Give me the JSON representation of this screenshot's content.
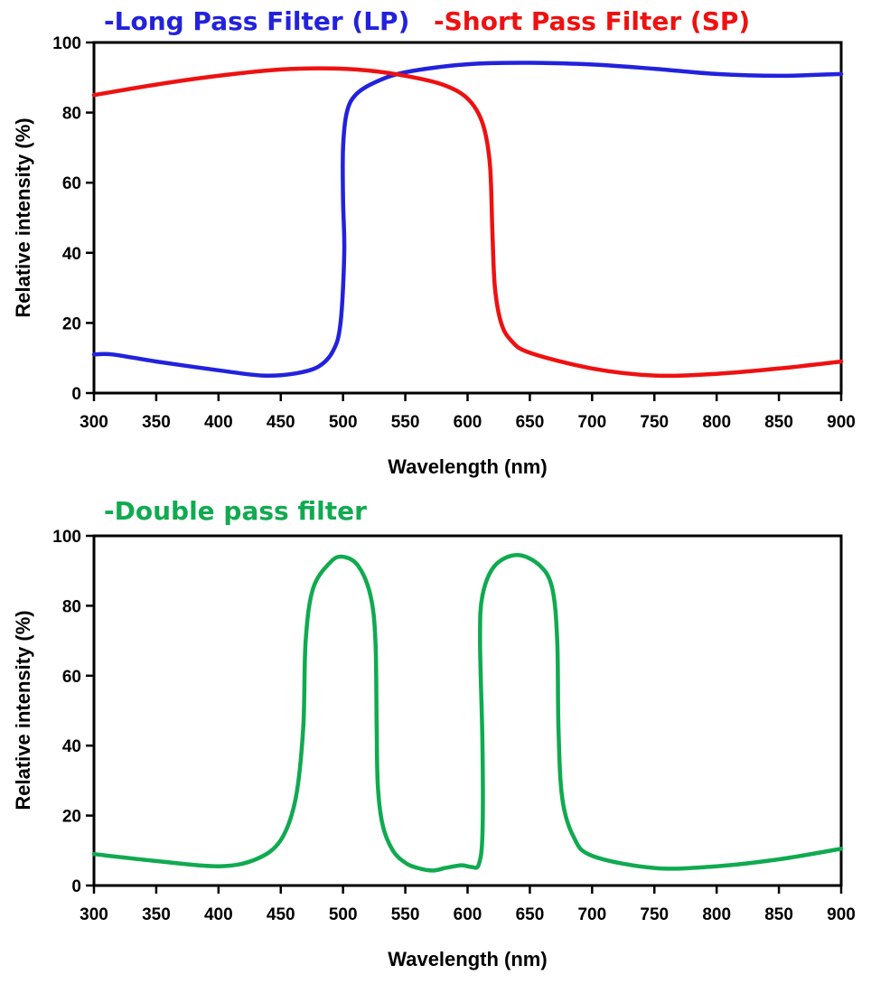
{
  "chart_data": [
    {
      "type": "line",
      "titles": [
        {
          "text": "-Long Pass Filter (LP)",
          "color": "#2222dd"
        },
        {
          "text": "-Short Pass Filter (SP)",
          "color": "#ee1111"
        }
      ],
      "xlabel": "Wavelength (nm)",
      "ylabel": "Relative intensity (%)",
      "xlim": [
        300,
        900
      ],
      "ylim": [
        0,
        100
      ],
      "xticks": [
        300,
        350,
        400,
        450,
        500,
        550,
        600,
        650,
        700,
        750,
        800,
        850,
        900
      ],
      "yticks": [
        0,
        20,
        40,
        60,
        80,
        100
      ],
      "grid": false,
      "series": [
        {
          "color": "#2222dd",
          "points": [
            [
              300,
              11
            ],
            [
              315,
              11
            ],
            [
              350,
              9
            ],
            [
              400,
              6.5
            ],
            [
              435,
              5
            ],
            [
              460,
              5.5
            ],
            [
              480,
              7.5
            ],
            [
              492,
              12
            ],
            [
              498,
              20
            ],
            [
              501,
              40
            ],
            [
              500,
              55
            ],
            [
              500,
              70
            ],
            [
              503,
              80
            ],
            [
              510,
              85
            ],
            [
              525,
              88.5
            ],
            [
              550,
              91.5
            ],
            [
              600,
              93.8
            ],
            [
              650,
              94.2
            ],
            [
              700,
              93.7
            ],
            [
              750,
              92.5
            ],
            [
              800,
              91
            ],
            [
              850,
              90.5
            ],
            [
              900,
              91
            ]
          ]
        },
        {
          "color": "#ee1111",
          "points": [
            [
              300,
              85
            ],
            [
              350,
              88
            ],
            [
              400,
              90.5
            ],
            [
              450,
              92.3
            ],
            [
              490,
              92.6
            ],
            [
              520,
              92
            ],
            [
              550,
              90.5
            ],
            [
              580,
              88
            ],
            [
              600,
              84
            ],
            [
              612,
              77
            ],
            [
              618,
              65
            ],
            [
              620,
              45
            ],
            [
              622,
              30
            ],
            [
              627,
              20
            ],
            [
              635,
              15
            ],
            [
              650,
              11.5
            ],
            [
              700,
              7
            ],
            [
              750,
              5
            ],
            [
              800,
              5.5
            ],
            [
              850,
              7
            ],
            [
              900,
              9
            ]
          ]
        }
      ]
    },
    {
      "type": "line",
      "titles": [
        {
          "text": "-Double pass filter",
          "color": "#10aa50"
        }
      ],
      "xlabel": "Wavelength (nm)",
      "ylabel": "Relative intensity (%)",
      "xlim": [
        300,
        900
      ],
      "ylim": [
        0,
        100
      ],
      "xticks": [
        300,
        350,
        400,
        450,
        500,
        550,
        600,
        650,
        700,
        750,
        800,
        850,
        900
      ],
      "yticks": [
        0,
        20,
        40,
        60,
        80,
        100
      ],
      "grid": false,
      "series": [
        {
          "color": "#10aa50",
          "points": [
            [
              300,
              9
            ],
            [
              350,
              7
            ],
            [
              400,
              5.5
            ],
            [
              430,
              7.5
            ],
            [
              450,
              13
            ],
            [
              462,
              25
            ],
            [
              468,
              45
            ],
            [
              470,
              70
            ],
            [
              476,
              85
            ],
            [
              490,
              92.5
            ],
            [
              500,
              94
            ],
            [
              512,
              91.5
            ],
            [
              522,
              83
            ],
            [
              526,
              70
            ],
            [
              527,
              45
            ],
            [
              528,
              28
            ],
            [
              532,
              17
            ],
            [
              540,
              10
            ],
            [
              550,
              6.5
            ],
            [
              560,
              5
            ],
            [
              572,
              4.3
            ],
            [
              582,
              5
            ],
            [
              595,
              5.8
            ],
            [
              603,
              5.3
            ],
            [
              609,
              6
            ],
            [
              612,
              15
            ],
            [
              612,
              40
            ],
            [
              610,
              70
            ],
            [
              612,
              83
            ],
            [
              622,
              91.5
            ],
            [
              640,
              94.5
            ],
            [
              658,
              91.5
            ],
            [
              668,
              85
            ],
            [
              672,
              70
            ],
            [
              673,
              45
            ],
            [
              676,
              25
            ],
            [
              685,
              14
            ],
            [
              700,
              8.5
            ],
            [
              750,
              5
            ],
            [
              800,
              5.5
            ],
            [
              850,
              7.5
            ],
            [
              900,
              10.5
            ]
          ]
        }
      ]
    }
  ]
}
